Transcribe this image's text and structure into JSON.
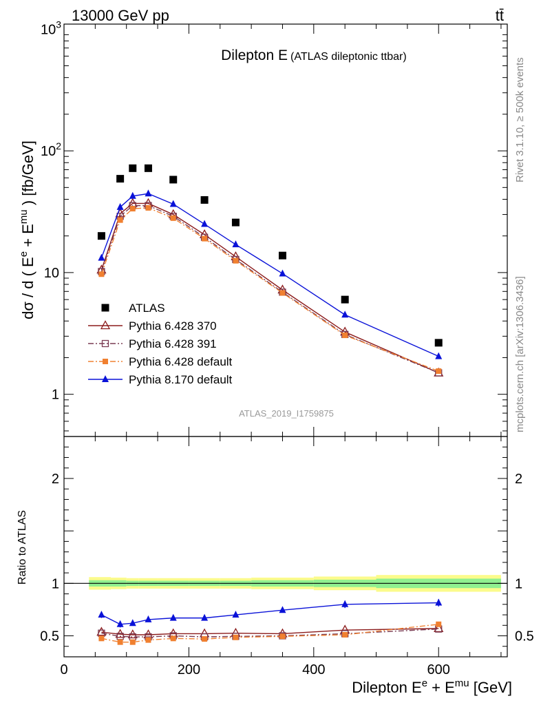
{
  "header": {
    "left_label": "13000 GeV pp",
    "right_label": "tt̄"
  },
  "side_labels": {
    "rivet": "Rivet 3.1.10, ≥ 500k events",
    "mcplots": "mcplots.cern.ch [arXiv:1306.3436]"
  },
  "chart_data": [
    {
      "type": "scatter",
      "panel": "main",
      "title_main": "Dilepton E",
      "title_sub": "(ATLAS dileptonic ttbar)",
      "analysis_label": "ATLAS_2019_I1759875",
      "ylabel_parts": [
        "dσ / d ( E",
        "e",
        " + E",
        "mu",
        " ) [fb/GeV]"
      ],
      "yscale": "log",
      "ylim": [
        0.45,
        1100
      ],
      "xlim": [
        0,
        710
      ],
      "y_tick_labels": [
        {
          "value": 1,
          "label": "1"
        },
        {
          "value": 10,
          "label": "10"
        },
        {
          "value": 100,
          "label": "10",
          "sup": "2"
        },
        {
          "value": 1000,
          "label": "10",
          "sup": "3"
        }
      ],
      "legend_position": "middle-left",
      "x": [
        60,
        90,
        110,
        135,
        175,
        225,
        275,
        350,
        450,
        600
      ],
      "series": [
        {
          "name": "ATLAS",
          "color": "#000000",
          "marker": "square-filled",
          "line": "none",
          "values": [
            20,
            59,
            72,
            72,
            58,
            39.5,
            25.8,
            13.8,
            6.0,
            2.65
          ]
        },
        {
          "name": "Pythia 6.428 370",
          "color": "#8b1a1a",
          "marker": "triangle-open",
          "line": "solid",
          "values": [
            10.5,
            30.5,
            37,
            37,
            30,
            20.5,
            13.5,
            7.2,
            3.25,
            1.5
          ]
        },
        {
          "name": "Pythia 6.428 391",
          "color": "#7a3b52",
          "marker": "square-open",
          "line": "dashdot",
          "values": [
            10.2,
            29,
            35.5,
            35.5,
            29,
            19.5,
            12.8,
            6.9,
            3.1,
            1.5
          ]
        },
        {
          "name": "Pythia 6.428 default",
          "color": "#f08030",
          "marker": "square-filled-small",
          "line": "dashdot",
          "values": [
            9.7,
            27,
            33.5,
            34,
            28,
            19,
            12.5,
            6.8,
            3.05,
            1.55
          ]
        },
        {
          "name": "Pythia 8.170 default",
          "color": "#0a12d8",
          "marker": "triangle-filled",
          "line": "solid",
          "values": [
            13.2,
            34.5,
            42.5,
            44.5,
            36.5,
            25,
            17,
            9.8,
            4.5,
            2.05
          ]
        }
      ]
    },
    {
      "type": "line",
      "panel": "ratio",
      "ylabel": "Ratio to ATLAS",
      "xlabel_parts": [
        "Dilepton E",
        "e",
        " + E",
        "mu",
        " [GeV]"
      ],
      "ylim": [
        0.3,
        2.4
      ],
      "xlim": [
        0,
        710
      ],
      "x_tick_labels": [
        0,
        200,
        400,
        600
      ],
      "y_tick_labels": [
        0.5,
        1,
        2
      ],
      "reference_line": 1,
      "uncertainty_band": {
        "edges": [
          40,
          75,
          100,
          120,
          150,
          200,
          250,
          300,
          400,
          500,
          700
        ],
        "inner": [
          0.03,
          0.03,
          0.025,
          0.025,
          0.025,
          0.025,
          0.025,
          0.03,
          0.035,
          0.045
        ],
        "outer": [
          0.06,
          0.055,
          0.05,
          0.05,
          0.05,
          0.05,
          0.05,
          0.055,
          0.065,
          0.08
        ],
        "inner_color": "#90f090",
        "outer_color": "#fbfb8c"
      },
      "x": [
        60,
        90,
        110,
        135,
        175,
        225,
        275,
        350,
        450,
        600
      ],
      "series": [
        {
          "name": "Pythia 6.428 370",
          "color": "#8b1a1a",
          "marker": "triangle-open",
          "line": "solid",
          "values": [
            0.535,
            0.515,
            0.51,
            0.51,
            0.52,
            0.52,
            0.525,
            0.52,
            0.555,
            0.57
          ],
          "errors": []
        },
        {
          "name": "Pythia 6.428 391",
          "color": "#7a3b52",
          "marker": "square-open",
          "line": "dashdot",
          "values": [
            0.525,
            0.495,
            0.49,
            0.49,
            0.5,
            0.49,
            0.495,
            0.5,
            0.52,
            0.565
          ],
          "errors": []
        },
        {
          "name": "Pythia 6.428 default",
          "color": "#f08030",
          "marker": "square-filled-small",
          "line": "dashdot",
          "values": [
            0.475,
            0.44,
            0.44,
            0.46,
            0.475,
            0.47,
            0.485,
            0.495,
            0.51,
            0.61
          ],
          "errors": []
        },
        {
          "name": "Pythia 8.170 default",
          "color": "#0a12d8",
          "marker": "triangle-filled",
          "line": "solid",
          "values": [
            0.7,
            0.61,
            0.62,
            0.655,
            0.67,
            0.67,
            0.7,
            0.745,
            0.8,
            0.815
          ],
          "errors": [
            0.03,
            0.03,
            0.025,
            0.02,
            0.02,
            0.02,
            0.025,
            0.025,
            0.035,
            0.035
          ]
        }
      ]
    }
  ]
}
